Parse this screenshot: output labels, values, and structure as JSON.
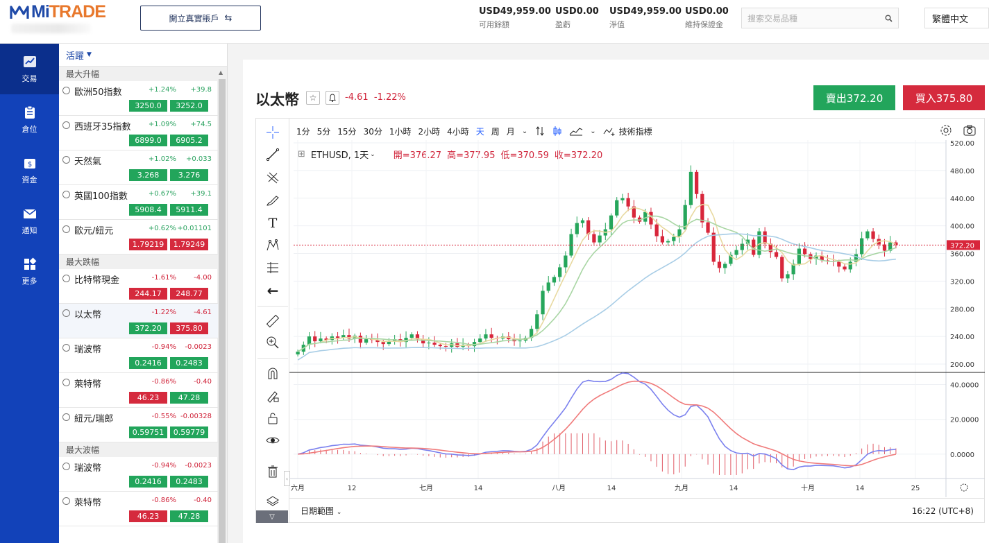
{
  "brand": {
    "mi": "Mi",
    "trade": "TRADE"
  },
  "header": {
    "open_account": "開立真實賬戶",
    "stats": [
      {
        "value": "USD49,959.00",
        "label": "可用餘額"
      },
      {
        "value": "USD0.00",
        "label": "盈虧"
      },
      {
        "value": "USD49,959.00",
        "label": "淨值"
      },
      {
        "value": "USD0.00",
        "label": "維持保證金"
      }
    ],
    "search_placeholder": "搜索交易品種",
    "language": "繁體中文"
  },
  "nav": [
    {
      "label": "交易",
      "icon": "chart-line-icon",
      "active": true
    },
    {
      "label": "倉位",
      "icon": "clipboard-icon"
    },
    {
      "label": "資金",
      "icon": "wallet-icon"
    },
    {
      "label": "通知",
      "icon": "mail-icon"
    },
    {
      "label": "更多",
      "icon": "grid-icon"
    }
  ],
  "watchlist": {
    "filter": "活躍",
    "sections": [
      {
        "title": "最大升幅",
        "items": [
          {
            "name": "歐洲50指數",
            "pct": "+1.24%",
            "chg": "+39.8",
            "sell": "3250.0",
            "buy": "3252.0",
            "dir": "up",
            "sell_color": "g",
            "buy_color": "g"
          },
          {
            "name": "西班牙35指數",
            "pct": "+1.09%",
            "chg": "+74.5",
            "sell": "6899.0",
            "buy": "6905.2",
            "dir": "up",
            "sell_color": "g",
            "buy_color": "g"
          },
          {
            "name": "天然氣",
            "pct": "+1.02%",
            "chg": "+0.033",
            "sell": "3.268",
            "buy": "3.276",
            "dir": "up",
            "sell_color": "g",
            "buy_color": "g"
          },
          {
            "name": "英國100指數",
            "pct": "+0.67%",
            "chg": "+39.1",
            "sell": "5908.4",
            "buy": "5911.4",
            "dir": "up",
            "sell_color": "g",
            "buy_color": "g"
          },
          {
            "name": "歐元/紐元",
            "pct": "+0.62%",
            "chg": "+0.01101",
            "sell": "1.79219",
            "buy": "1.79249",
            "dir": "up",
            "sell_color": "r",
            "buy_color": "r"
          }
        ]
      },
      {
        "title": "最大跌幅",
        "items": [
          {
            "name": "比特幣現金",
            "pct": "-1.61%",
            "chg": "-4.00",
            "sell": "244.17",
            "buy": "248.77",
            "dir": "down",
            "sell_color": "r",
            "buy_color": "r"
          },
          {
            "name": "以太幣",
            "pct": "-1.22%",
            "chg": "-4.61",
            "sell": "372.20",
            "buy": "375.80",
            "dir": "down",
            "sell_color": "g",
            "buy_color": "r",
            "selected": true
          },
          {
            "name": "瑞波幣",
            "pct": "-0.94%",
            "chg": "-0.0023",
            "sell": "0.2416",
            "buy": "0.2483",
            "dir": "down",
            "sell_color": "g",
            "buy_color": "g"
          },
          {
            "name": "萊特幣",
            "pct": "-0.86%",
            "chg": "-0.40",
            "sell": "46.23",
            "buy": "47.28",
            "dir": "down",
            "sell_color": "r",
            "buy_color": "g"
          },
          {
            "name": "紐元/瑞郎",
            "pct": "-0.55%",
            "chg": "-0.00328",
            "sell": "0.59751",
            "buy": "0.59779",
            "dir": "down",
            "sell_color": "g",
            "buy_color": "g"
          }
        ]
      },
      {
        "title": "最大波幅",
        "items": [
          {
            "name": "瑞波幣",
            "pct": "-0.94%",
            "chg": "-0.0023",
            "sell": "0.2416",
            "buy": "0.2483",
            "dir": "down",
            "sell_color": "g",
            "buy_color": "g"
          },
          {
            "name": "萊特幣",
            "pct": "-0.86%",
            "chg": "-0.40",
            "sell": "46.23",
            "buy": "47.28",
            "dir": "down",
            "sell_color": "r",
            "buy_color": "g"
          }
        ]
      }
    ]
  },
  "instrument": {
    "title": "以太幣",
    "change": "-4.61",
    "change_pct": "-1.22%",
    "sell_label": "賣出372.20",
    "buy_label": "買入375.80"
  },
  "chart_toolbar": {
    "intervals": [
      "1分",
      "5分",
      "15分",
      "30分",
      "1小時",
      "2小時",
      "4小時",
      "天",
      "周",
      "月"
    ],
    "active_interval": "天",
    "indicators": "技術指標"
  },
  "chart_info": {
    "symbol": "ETHUSD, 1天",
    "open": "開=376.27",
    "high": "高=377.95",
    "low": "低=370.59",
    "close": "收=372.20"
  },
  "chart_footer": {
    "range": "日期範圍",
    "time": "16:22 (UTC+8)"
  },
  "chart_data": {
    "type": "candlestick",
    "price_axis": {
      "ticks": [
        "520.00",
        "480.00",
        "440.00",
        "400.00",
        "360.00",
        "320.00",
        "280.00",
        "240.00",
        "200.00"
      ],
      "ylim": [
        188,
        524
      ],
      "last_price_label": "372.20",
      "last_price": 372.2
    },
    "macd_axis": {
      "ticks": [
        "40.0000",
        "20.0000",
        "0.0000"
      ],
      "ylim": [
        -14,
        47
      ]
    },
    "time_axis": [
      "六月",
      "12",
      "七月",
      "14",
      "八月",
      "14",
      "九月",
      "14",
      "十月",
      "14",
      "25"
    ],
    "closes": [
      218,
      228,
      240,
      233,
      237,
      235,
      240,
      238,
      242,
      237,
      241,
      231,
      236,
      235,
      232,
      229,
      233,
      236,
      232,
      238,
      243,
      236,
      230,
      231,
      228,
      226,
      225,
      230,
      225,
      228,
      226,
      232,
      237,
      243,
      238,
      237,
      240,
      236,
      233,
      234,
      238,
      251,
      272,
      306,
      318,
      326,
      340,
      357,
      388,
      404,
      408,
      388,
      376,
      386,
      395,
      415,
      437,
      440,
      428,
      412,
      406,
      420,
      402,
      385,
      376,
      378,
      384,
      395,
      430,
      478,
      446,
      405,
      390,
      348,
      339,
      345,
      358,
      365,
      374,
      380,
      358,
      392,
      374,
      362,
      355,
      324,
      330,
      345,
      367,
      359,
      352,
      357,
      350,
      349,
      348,
      341,
      337,
      348,
      359,
      382,
      392,
      381,
      373,
      364,
      376,
      372.2
    ],
    "macd_hist_range": [
      -12,
      12
    ],
    "series": [
      {
        "name": "MA fast",
        "color": "#e8d9a0"
      },
      {
        "name": "MA mid",
        "color": "#a9d6a4"
      },
      {
        "name": "MA slow",
        "color": "#a8cde6"
      },
      {
        "name": "MACD",
        "color": "#7a80ee"
      },
      {
        "name": "Signal",
        "color": "#f07a7a"
      }
    ]
  }
}
